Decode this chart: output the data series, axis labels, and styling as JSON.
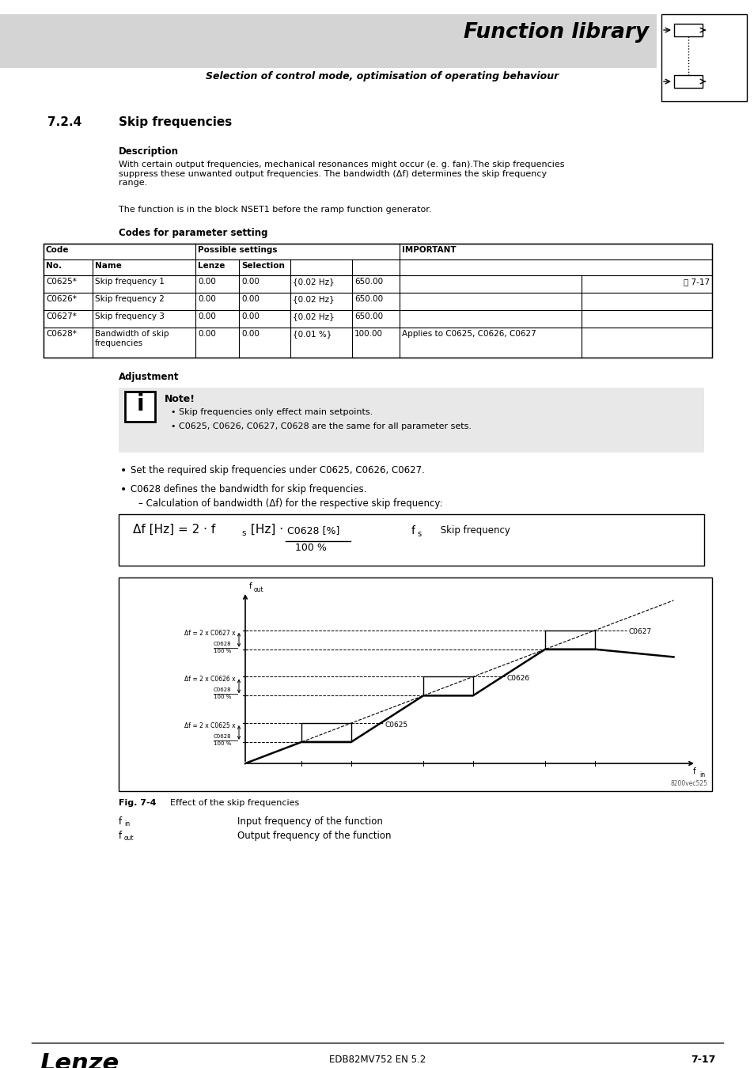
{
  "title": "Function library",
  "subtitle": "Selection of control mode, optimisation of operating behaviour",
  "section": "7.2.4",
  "section_title": "Skip frequencies",
  "description_title": "Description",
  "description_text1": "With certain output frequencies, mechanical resonances might occur (e. g. fan).The skip frequencies\nsuppress these unwanted output frequencies. The bandwidth (Δf) determines the skip frequency\nrange.",
  "description_text2": "The function is in the block NSET1 before the ramp function generator.",
  "codes_title": "Codes for parameter setting",
  "adj_title": "Adjustment",
  "note_title": "Note!",
  "note_bullets": [
    "Skip frequencies only effect main setpoints.",
    "C0625, C0626, C0627, C0628 are the same for all parameter sets."
  ],
  "bullet1": "Set the required skip frequencies under C0625, C0626, C0627.",
  "bullet2": "C0628 defines the bandwidth for skip frequencies.",
  "sub_bullet": "– Calculation of bandwidth (Δf) for the respective skip frequency:",
  "formula_frac_num": "C0628 [%]",
  "formula_frac_den": "100 %",
  "fig_label": "Fig. 7-4",
  "fig_caption": "Effect of the skip frequencies",
  "legend_fin_text": "Input frequency of the function",
  "legend_fout_text": "Output frequency of the function",
  "page_num": "7-17",
  "doc_id": "EDB82MV752 EN 5.2",
  "header_bg": "#d4d4d4",
  "note_bg": "#e8e8e8",
  "white": "#ffffff"
}
